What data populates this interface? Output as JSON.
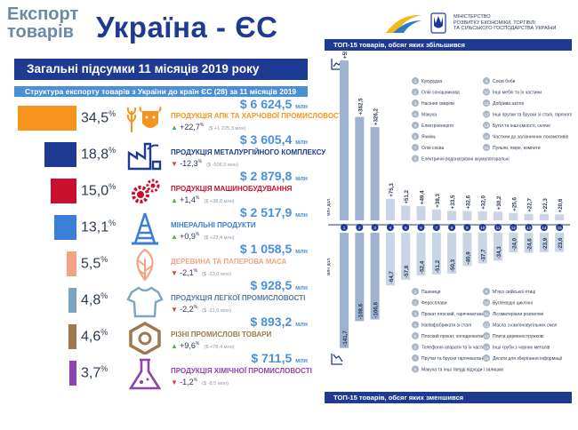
{
  "header": {
    "export_line1": "Експорт",
    "export_line2": "товарів",
    "title": "Україна - ЄС",
    "ministry_lines": [
      "МІНІСТЕРСТВО",
      "РОЗВИТКУ ЕКОНОМІКИ, ТОРГІВЛІ",
      "ТА СІЛЬСЬКОГО ГОСПОДАРСТВА УКРАЇНИ"
    ]
  },
  "summary": {
    "title": "Загальні підсумки 11 місяців 2019 року",
    "structure": "Структура експорту товарів з України  до країн ЄС (28)  за 11 місяців 2019 року"
  },
  "unit_mln": "млн",
  "categories": [
    {
      "share": 34.5,
      "share_text": "34,5",
      "color": "#f7941d",
      "icon": "wheat-cow-icon",
      "amount": "$ 6 624,5",
      "name": "ПРОДУКЦІЯ АПК ТА ХАРЧОВОЇ ПРОМИСЛОВОСТІ",
      "name_color": "#f7941d",
      "change": "+22,7",
      "change_abs": "($ +1 225,3 млн)",
      "direction": "up"
    },
    {
      "share": 18.8,
      "share_text": "18,8",
      "color": "#1f3a93",
      "icon": "factory-icon",
      "amount": "$ 3 605,4",
      "name": "ПРОДУКЦІЯ МЕТАЛУРГІЙНОГО КОМПЛЕКСУ",
      "name_color": "#1f3a93",
      "change": "-12,3",
      "change_abs": "($ -506,5 млн)",
      "direction": "down"
    },
    {
      "share": 15.0,
      "share_text": "15,0",
      "color": "#c8102e",
      "icon": "gears-icon",
      "amount": "$ 2 879,8",
      "name": "ПРОДУКЦІЯ МАШИНОБУДУВАННЯ",
      "name_color": "#c8102e",
      "change": "+1,4",
      "change_abs": "($ +38,8 млн)",
      "direction": "up"
    },
    {
      "share": 13.1,
      "share_text": "13,1",
      "color": "#3a7fd5",
      "icon": "oil-rig-icon",
      "amount": "$ 2 517,9",
      "name": "МІНЕРАЛЬНІ ПРОДУКТИ",
      "name_color": "#3a7fd5",
      "change": "+0,9",
      "change_abs": "($ +23,4 млн)",
      "direction": "up"
    },
    {
      "share": 5.5,
      "share_text": "5,5",
      "color": "#f4a384",
      "icon": "leaf-icon",
      "amount": "$ 1 058,5",
      "name": "ДЕРЕВИНА ТА ПАПЕРОВА МАСА",
      "name_color": "#f4a384",
      "change": "-2,1",
      "change_abs": "($ -23,0 млн)",
      "direction": "down"
    },
    {
      "share": 4.8,
      "share_text": "4,8",
      "color": "#7aa6c2",
      "icon": "tshirt-icon",
      "amount": "$ 928,5",
      "name": "ПРОДУКЦІЯ ЛЕГКОЇ ПРОМИСЛОВОСТІ",
      "name_color": "#5a7d99",
      "change": "-2,2",
      "change_abs": "($ -21,0 млн)",
      "direction": "down"
    },
    {
      "share": 4.6,
      "share_text": "4,6",
      "color": "#a07850",
      "icon": "nut-icon",
      "amount": "$ 893,2",
      "name": "РІЗНІ ПРОМИСЛОВІ ТОВАРИ",
      "name_color": "#a07850",
      "change": "+9,6",
      "change_abs": "($ +78,4 млн)",
      "direction": "up"
    },
    {
      "share": 3.7,
      "share_text": "3,7",
      "color": "#8e44ad",
      "icon": "flask-icon",
      "amount": "$ 711,5",
      "name": "ПРОДУКЦІЯ ХІМІЧНОЇ ПРОМИСЛОВОСТІ",
      "name_color": "#8e44ad",
      "change": "-1,2",
      "change_abs": "($ -8,5 млн)",
      "direction": "down"
    }
  ],
  "chart_data": {
    "type": "bar",
    "title_top": "ТОП-15 товарів, обсяг яких збільшився",
    "title_bottom": "ТОП-15 товарів, обсяг яких зменшився",
    "ylabel": "млн дол.",
    "categories": [
      "1",
      "2",
      "3",
      "4",
      "5",
      "6",
      "7",
      "8",
      "9",
      "10",
      "11",
      "12",
      "13",
      "14",
      "15"
    ],
    "increase": {
      "values": [
        559.6,
        362.5,
        326.2,
        75.3,
        51.2,
        49.4,
        38.3,
        33.5,
        32.6,
        32.0,
        30.2,
        25.6,
        22.7,
        22.3,
        20.6
      ],
      "labels": [
        "+559,6",
        "+362,5",
        "+326,2",
        "+75,3",
        "+51,2",
        "+49,4",
        "+38,3",
        "+33,5",
        "+32,6",
        "+32,0",
        "+30,2",
        "+25,6",
        "+22,7",
        "+22,3",
        "+20,6"
      ],
      "legend": [
        "Кукурудза",
        "Олія соняшникова",
        "Насіння свиріпи",
        "Макуха",
        "Електроенергія",
        "Ячмінь",
        "Олія соєва",
        "Електричні водонагрівачі акумуляторальні",
        "Соєві боби",
        "Інші меблі та їх частини",
        "Добрива азотні",
        "Інші прутки та бруски зі сталі, гарячого прокатування",
        "Бутіл та інші ємності, скляні",
        "Частини до залізничних локомотивів",
        "Пульпи, пюре, компоти"
      ]
    },
    "decrease": {
      "values": [
        -141.7,
        -108.6,
        -106.6,
        -64.7,
        -57.8,
        -52.4,
        -51.2,
        -50.3,
        -40.9,
        -37.7,
        -34.3,
        -24.0,
        -24.6,
        -23.9,
        -23.6
      ],
      "labels": [
        "-141,7",
        "-108,6",
        "-106,6",
        "-64,7",
        "-57,8",
        "-52,4",
        "-51,2",
        "-50,3",
        "-40,9",
        "-37,7",
        "-34,3",
        "-24,0",
        "-24,6",
        "-23,9",
        "-23,6"
      ],
      "legend": [
        "Пшениця",
        "Феросплави",
        "Прокат плоский, гарячекатаний",
        "Напівфабрикати зі сталі",
        "Плоский прокат, холоднокатаний",
        "Телефонні апарати та їх частини",
        "Прутки та бруски гарячекатані",
        "Макуха та інші тверді відходи і залишки",
        "М'ясо свійської птиці",
        "Вуглеводні циклічні",
        "Лісоматеріали розпиляні",
        "Масла з кам'яновугільних смол",
        "Плити деревностружкові",
        "Інші труби з чорних металів",
        "Дескти для зберігання інформації"
      ]
    }
  }
}
